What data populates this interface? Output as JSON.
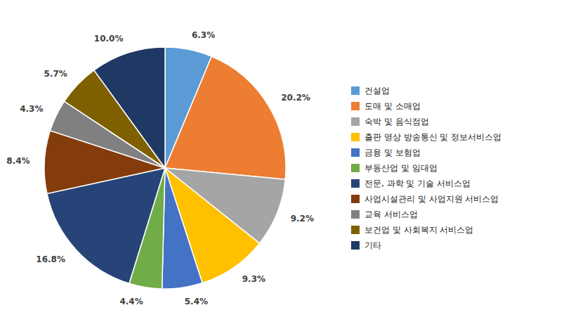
{
  "chart_data": {
    "type": "pie",
    "categories": [
      "건설업",
      "도매 및 소매업",
      "숙박 및 음식점업",
      "출판 영상 방송통신 및 정보서비스업",
      "금융 및 보험업",
      "부동산업 및 임대업",
      "전문, 과학 및 기술 서비스업",
      "사업시설관리 및 사업지원 서비스업",
      "교육 서비스업",
      "보건업 및 사회복지 서비스업",
      "기타"
    ],
    "values": [
      6.3,
      20.2,
      9.2,
      9.3,
      5.4,
      4.4,
      16.8,
      8.4,
      4.3,
      5.7,
      10.0
    ],
    "value_labels": [
      "6.3%",
      "20.2%",
      "9.2%",
      "9.3%",
      "5.4%",
      "4.4%",
      "16.8%",
      "8.4%",
      "4.3%",
      "5.7%",
      "10.0%"
    ],
    "colors": [
      "#5B9BD5",
      "#ED7D31",
      "#A5A5A5",
      "#FFC000",
      "#4472C4",
      "#70AD47",
      "#264478",
      "#843C0C",
      "#808080",
      "#7F6000",
      "#1F3864"
    ],
    "data_labels": true,
    "legend": "right"
  }
}
